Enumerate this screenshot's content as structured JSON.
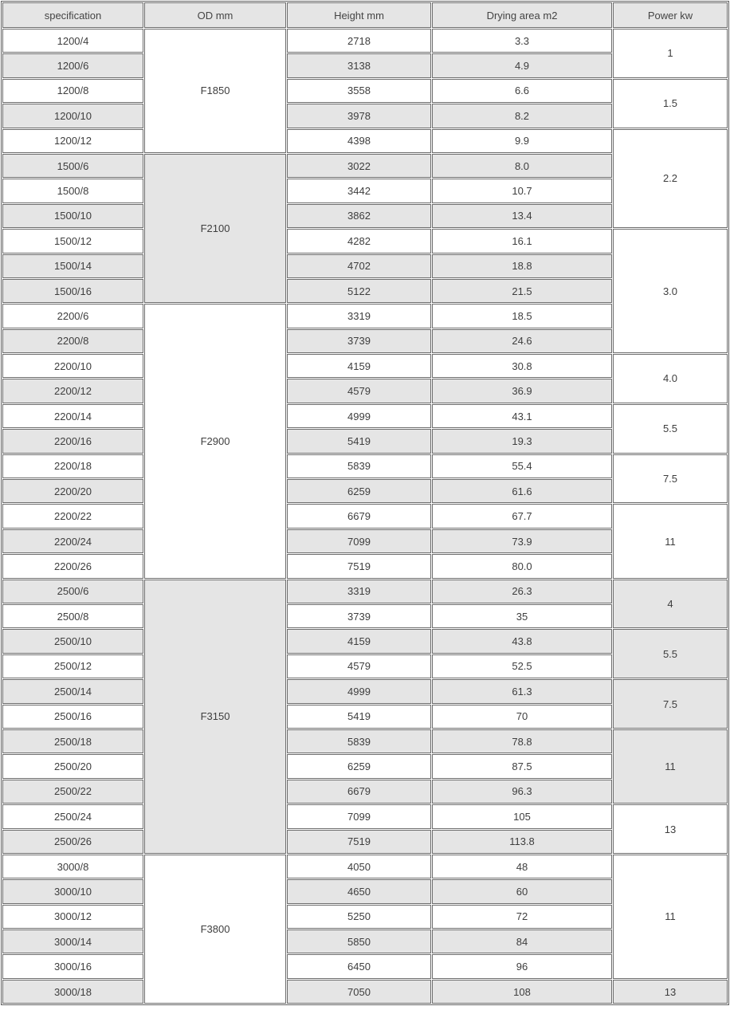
{
  "colors": {
    "stripe": "#e5e5e5",
    "header_bg": "#e5e5e5",
    "border_inner": "#6d6d6d",
    "border_outer": "#5f5f5f",
    "text": "#3e3e3e",
    "background": "#ffffff"
  },
  "table": {
    "columns": [
      {
        "key": "spec",
        "label": "specification"
      },
      {
        "key": "od",
        "label": "OD mm"
      },
      {
        "key": "height",
        "label": "Height mm"
      },
      {
        "key": "area",
        "label": "Drying area m2"
      },
      {
        "key": "power",
        "label": "Power kw"
      }
    ],
    "rows": [
      {
        "spec": "1200/4",
        "height": "2718",
        "area": "3.3",
        "shade": false,
        "od": {
          "label": "F1850",
          "rowspan": 5,
          "shade": false
        },
        "power": {
          "label": "1",
          "rowspan": 2,
          "shade": false
        }
      },
      {
        "spec": "1200/6",
        "height": "3138",
        "area": "4.9",
        "shade": true
      },
      {
        "spec": "1200/8",
        "height": "3558",
        "area": "6.6",
        "shade": false,
        "power": {
          "label": "1.5",
          "rowspan": 2,
          "shade": false
        }
      },
      {
        "spec": "1200/10",
        "height": "3978",
        "area": "8.2",
        "shade": true
      },
      {
        "spec": "1200/12",
        "height": "4398",
        "area": "9.9",
        "shade": false,
        "power": {
          "label": "2.2",
          "rowspan": 4,
          "shade": false
        }
      },
      {
        "spec": "1500/6",
        "height": "3022",
        "area": "8.0",
        "shade": true,
        "od": {
          "label": "F2100",
          "rowspan": 6,
          "shade": true
        }
      },
      {
        "spec": "1500/8",
        "height": "3442",
        "area": "10.7",
        "shade": false
      },
      {
        "spec": "1500/10",
        "height": "3862",
        "area": "13.4",
        "shade": true
      },
      {
        "spec": "1500/12",
        "height": "4282",
        "area": "16.1",
        "shade": false,
        "power": {
          "label": "3.0",
          "rowspan": 5,
          "shade": false
        }
      },
      {
        "spec": "1500/14",
        "height": "4702",
        "area": "18.8",
        "shade": true
      },
      {
        "spec": "1500/16",
        "height": "5122",
        "area": "21.5",
        "shade": true
      },
      {
        "spec": "2200/6",
        "height": "3319",
        "area": "18.5",
        "shade": false,
        "od": {
          "label": "F2900",
          "rowspan": 11,
          "shade": false
        }
      },
      {
        "spec": "2200/8",
        "height": "3739",
        "area": "24.6",
        "shade": true
      },
      {
        "spec": "2200/10",
        "height": "4159",
        "area": "30.8",
        "shade": false,
        "power": {
          "label": "4.0",
          "rowspan": 2,
          "shade": false
        }
      },
      {
        "spec": "2200/12",
        "height": "4579",
        "area": "36.9",
        "shade": true
      },
      {
        "spec": "2200/14",
        "height": "4999",
        "area": "43.1",
        "shade": false,
        "power": {
          "label": "5.5",
          "rowspan": 2,
          "shade": false
        }
      },
      {
        "spec": "2200/16",
        "height": "5419",
        "area": "19.3",
        "shade": true
      },
      {
        "spec": "2200/18",
        "height": "5839",
        "area": "55.4",
        "shade": false,
        "power": {
          "label": "7.5",
          "rowspan": 2,
          "shade": false
        }
      },
      {
        "spec": "2200/20",
        "height": "6259",
        "area": "61.6",
        "shade": true
      },
      {
        "spec": "2200/22",
        "height": "6679",
        "area": "67.7",
        "shade": false,
        "power": {
          "label": "11",
          "rowspan": 3,
          "shade": false
        }
      },
      {
        "spec": "2200/24",
        "height": "7099",
        "area": "73.9",
        "shade": true
      },
      {
        "spec": "2200/26",
        "height": "7519",
        "area": "80.0",
        "shade": false
      },
      {
        "spec": "2500/6",
        "height": "3319",
        "area": "26.3",
        "shade": true,
        "od": {
          "label": "F3150",
          "rowspan": 11,
          "shade": true
        },
        "power": {
          "label": "4",
          "rowspan": 2,
          "shade": true
        }
      },
      {
        "spec": "2500/8",
        "height": "3739",
        "area": "35",
        "shade": false
      },
      {
        "spec": "2500/10",
        "height": "4159",
        "area": "43.8",
        "shade": true,
        "power": {
          "label": "5.5",
          "rowspan": 2,
          "shade": true
        }
      },
      {
        "spec": "2500/12",
        "height": "4579",
        "area": "52.5",
        "shade": false
      },
      {
        "spec": "2500/14",
        "height": "4999",
        "area": "61.3",
        "shade": true,
        "power": {
          "label": "7.5",
          "rowspan": 2,
          "shade": true
        }
      },
      {
        "spec": "2500/16",
        "height": "5419",
        "area": "70",
        "shade": false
      },
      {
        "spec": "2500/18",
        "height": "5839",
        "area": "78.8",
        "shade": true,
        "power": {
          "label": "11",
          "rowspan": 3,
          "shade": true
        }
      },
      {
        "spec": "2500/20",
        "height": "6259",
        "area": "87.5",
        "shade": false
      },
      {
        "spec": "2500/22",
        "height": "6679",
        "area": "96.3",
        "shade": true
      },
      {
        "spec": "2500/24",
        "height": "7099",
        "area": "105",
        "shade": false,
        "power": {
          "label": "13",
          "rowspan": 2,
          "shade": false
        }
      },
      {
        "spec": "2500/26",
        "height": "7519",
        "area": "113.8",
        "shade": true
      },
      {
        "spec": "3000/8",
        "height": "4050",
        "area": "48",
        "shade": false,
        "od": {
          "label": "F3800",
          "rowspan": 6,
          "shade": false
        },
        "power": {
          "label": "11",
          "rowspan": 5,
          "shade": false
        }
      },
      {
        "spec": "3000/10",
        "height": "4650",
        "area": "60",
        "shade": true
      },
      {
        "spec": "3000/12",
        "height": "5250",
        "area": "72",
        "shade": false
      },
      {
        "spec": "3000/14",
        "height": "5850",
        "area": "84",
        "shade": true
      },
      {
        "spec": "3000/16",
        "height": "6450",
        "area": "96",
        "shade": false
      },
      {
        "spec": "3000/18",
        "height": "7050",
        "area": "108",
        "shade": true,
        "power": {
          "label": "13",
          "rowspan": 1,
          "shade": true
        }
      }
    ]
  },
  "chart_data": {
    "type": "table",
    "title": "",
    "columns": [
      "specification",
      "OD mm",
      "Height mm",
      "Drying area m2",
      "Power kw"
    ],
    "records": [
      [
        "1200/4",
        "F1850",
        2718,
        3.3,
        "1"
      ],
      [
        "1200/6",
        "F1850",
        3138,
        4.9,
        "1"
      ],
      [
        "1200/8",
        "F1850",
        3558,
        6.6,
        "1.5"
      ],
      [
        "1200/10",
        "F1850",
        3978,
        8.2,
        "1.5"
      ],
      [
        "1200/12",
        "F1850",
        4398,
        9.9,
        "2.2"
      ],
      [
        "1500/6",
        "F2100",
        3022,
        8.0,
        "2.2"
      ],
      [
        "1500/8",
        "F2100",
        3442,
        10.7,
        "2.2"
      ],
      [
        "1500/10",
        "F2100",
        3862,
        13.4,
        "2.2"
      ],
      [
        "1500/12",
        "F2100",
        4282,
        16.1,
        "3.0"
      ],
      [
        "1500/14",
        "F2100",
        4702,
        18.8,
        "3.0"
      ],
      [
        "1500/16",
        "F2100",
        5122,
        21.5,
        "3.0"
      ],
      [
        "2200/6",
        "F2900",
        3319,
        18.5,
        "3.0"
      ],
      [
        "2200/8",
        "F2900",
        3739,
        24.6,
        "3.0"
      ],
      [
        "2200/10",
        "F2900",
        4159,
        30.8,
        "4.0"
      ],
      [
        "2200/12",
        "F2900",
        4579,
        36.9,
        "4.0"
      ],
      [
        "2200/14",
        "F2900",
        4999,
        43.1,
        "5.5"
      ],
      [
        "2200/16",
        "F2900",
        5419,
        19.3,
        "5.5"
      ],
      [
        "2200/18",
        "F2900",
        5839,
        55.4,
        "7.5"
      ],
      [
        "2200/20",
        "F2900",
        6259,
        61.6,
        "7.5"
      ],
      [
        "2200/22",
        "F2900",
        6679,
        67.7,
        "11"
      ],
      [
        "2200/24",
        "F2900",
        7099,
        73.9,
        "11"
      ],
      [
        "2200/26",
        "F2900",
        7519,
        80.0,
        "11"
      ],
      [
        "2500/6",
        "F3150",
        3319,
        26.3,
        "4"
      ],
      [
        "2500/8",
        "F3150",
        3739,
        35,
        "4"
      ],
      [
        "2500/10",
        "F3150",
        4159,
        43.8,
        "5.5"
      ],
      [
        "2500/12",
        "F3150",
        4579,
        52.5,
        "5.5"
      ],
      [
        "2500/14",
        "F3150",
        4999,
        61.3,
        "7.5"
      ],
      [
        "2500/16",
        "F3150",
        5419,
        70,
        "7.5"
      ],
      [
        "2500/18",
        "F3150",
        5839,
        78.8,
        "11"
      ],
      [
        "2500/20",
        "F3150",
        6259,
        87.5,
        "11"
      ],
      [
        "2500/22",
        "F3150",
        6679,
        96.3,
        "11"
      ],
      [
        "2500/24",
        "F3150",
        7099,
        105,
        "13"
      ],
      [
        "2500/26",
        "F3150",
        7519,
        113.8,
        "13"
      ],
      [
        "3000/8",
        "F3800",
        4050,
        48,
        "11"
      ],
      [
        "3000/10",
        "F3800",
        4650,
        60,
        "11"
      ],
      [
        "3000/12",
        "F3800",
        5250,
        72,
        "11"
      ],
      [
        "3000/14",
        "F3800",
        5850,
        84,
        "11"
      ],
      [
        "3000/16",
        "F3800",
        6450,
        96,
        "11"
      ],
      [
        "3000/18",
        "F3800",
        7050,
        108,
        "13"
      ]
    ]
  }
}
